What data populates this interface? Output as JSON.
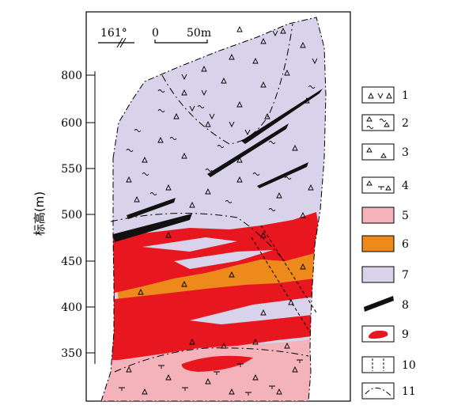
{
  "axis": {
    "ylabel": "标高(m)",
    "ticks": [
      "800",
      "600",
      "550",
      "500",
      "450",
      "400",
      "350"
    ]
  },
  "orientation_label": "161°",
  "scale": {
    "zero": "0",
    "length": "50m"
  },
  "legend": [
    "1",
    "2",
    "3",
    "4",
    "5",
    "6",
    "7",
    "8",
    "9",
    "10",
    "11"
  ],
  "colors": {
    "lavender": "#d8d3ea",
    "pink": "#f4b3bb",
    "red": "#e8171f",
    "orange": "#ee8a1b",
    "black": "#111111"
  }
}
